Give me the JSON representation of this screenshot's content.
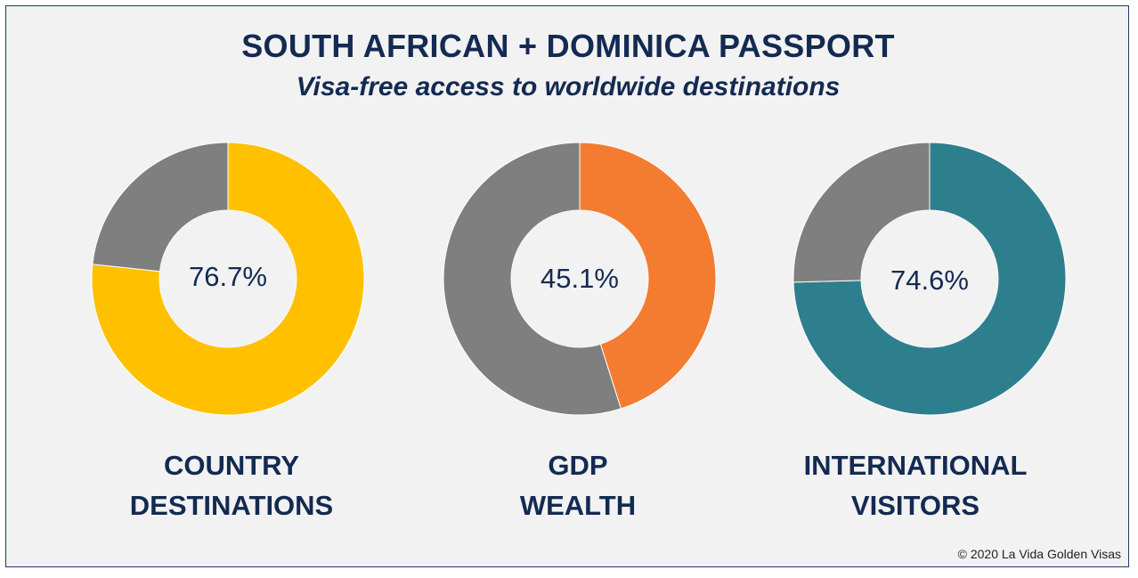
{
  "header": {
    "title": "SOUTH AFRICAN + DOMINICA PASSPORT",
    "subtitle": "Visa-free access to worldwide destinations"
  },
  "chart_data": [
    {
      "type": "pie",
      "labels": [
        "COUNTRY DESTINATIONS",
        ""
      ],
      "values": [
        76.7,
        23.3
      ],
      "colors": [
        "#ffc000",
        "#7f7f7f"
      ],
      "center_label": "76.7%",
      "category_label": [
        "COUNTRY",
        "DESTINATIONS"
      ]
    },
    {
      "type": "pie",
      "labels": [
        "GDP WEALTH",
        ""
      ],
      "values": [
        45.1,
        54.9
      ],
      "colors": [
        "#f47c30",
        "#7f7f7f"
      ],
      "center_label": "45.1%",
      "category_label": [
        "GDP",
        "WEALTH"
      ]
    },
    {
      "type": "pie",
      "labels": [
        "INTERNATIONAL VISITORS",
        ""
      ],
      "values": [
        74.6,
        25.4
      ],
      "colors": [
        "#2e7f8e",
        "#7f7f7f"
      ],
      "center_label": "74.6%",
      "category_label": [
        "INTERNATIONAL",
        "VISITORS"
      ]
    }
  ],
  "footer": {
    "copyright": "© 2020 La Vida Golden Visas"
  }
}
